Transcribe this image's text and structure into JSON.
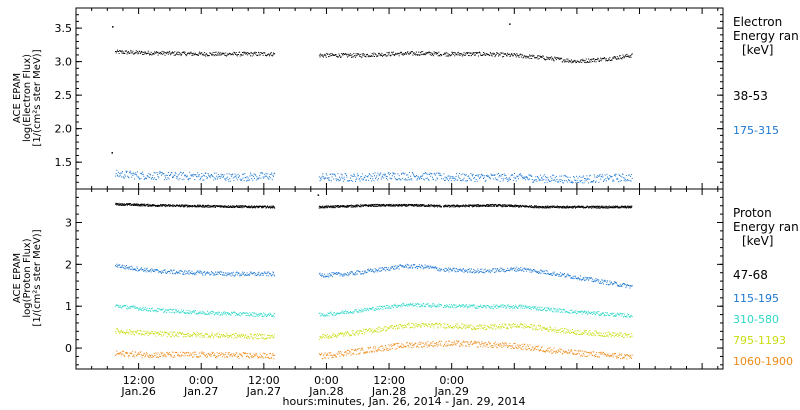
{
  "chart_data": [
    {
      "type": "scatter",
      "panel": "electron",
      "ylabel_lines": [
        "ACE EPAM",
        "log(Electron Flux)",
        "[1/(cm²s ster MeV)]"
      ],
      "ylim": [
        1.1,
        3.8
      ],
      "yticks": [
        1.5,
        2.0,
        2.5,
        3.0,
        3.5
      ],
      "ytick_labels": [
        "1.5",
        "2.0",
        "2.5",
        "3.0",
        "3.5"
      ],
      "legend_title": [
        "Electron",
        "Energy ran",
        "[keV]"
      ],
      "gaps_hours": [
        [
          38.0,
          46.5
        ],
        [
          70.0,
          70.3
        ]
      ],
      "series": [
        {
          "name": "38-53",
          "color": "#000000",
          "points": [
            [
              7.5,
              3.15
            ],
            [
              12.0,
              3.14
            ],
            [
              18.0,
              3.13
            ],
            [
              24.0,
              3.12
            ],
            [
              30.0,
              3.12
            ],
            [
              37.5,
              3.12
            ],
            [
              47.0,
              3.1
            ],
            [
              54.0,
              3.1
            ],
            [
              60.0,
              3.12
            ],
            [
              66.0,
              3.13
            ],
            [
              70.5,
              3.12
            ],
            [
              78.0,
              3.12
            ],
            [
              84.0,
              3.1
            ],
            [
              90.0,
              3.06
            ],
            [
              96.0,
              3.01
            ],
            [
              102.0,
              3.05
            ],
            [
              106.5,
              3.1
            ]
          ],
          "outliers": [
            [
              6.9,
              3.53
            ],
            [
              6.8,
              1.65
            ],
            [
              83.0,
              3.57
            ]
          ]
        },
        {
          "name": "175-315",
          "color": "#1e78d2",
          "points": [
            [
              7.5,
              1.33
            ],
            [
              12.0,
              1.31
            ],
            [
              18.0,
              1.3
            ],
            [
              24.0,
              1.3
            ],
            [
              30.0,
              1.28
            ],
            [
              37.5,
              1.3
            ],
            [
              47.0,
              1.28
            ],
            [
              54.0,
              1.28
            ],
            [
              60.0,
              1.3
            ],
            [
              66.0,
              1.3
            ],
            [
              70.5,
              1.28
            ],
            [
              78.0,
              1.28
            ],
            [
              84.0,
              1.28
            ],
            [
              90.0,
              1.26
            ],
            [
              96.0,
              1.25
            ],
            [
              102.0,
              1.27
            ],
            [
              106.5,
              1.28
            ]
          ]
        }
      ]
    },
    {
      "type": "scatter",
      "panel": "proton",
      "ylabel_lines": [
        "ACE EPAM",
        "log(Proton Flux)",
        "[1/(cm²s ster MeV)]"
      ],
      "ylim": [
        -0.5,
        3.8
      ],
      "yticks": [
        0,
        1,
        2,
        3
      ],
      "ytick_labels": [
        "0",
        "1",
        "2",
        "3"
      ],
      "xticks_hours": [
        12,
        24,
        36,
        48,
        60,
        72
      ],
      "xtick_labels": [
        [
          "12:00",
          "Jan.26"
        ],
        [
          "0:00",
          "Jan.27"
        ],
        [
          "12:00",
          "Jan.27"
        ],
        [
          "0:00",
          "Jan.28"
        ],
        [
          "12:00",
          "Jan.28"
        ],
        [
          "0:00",
          "Jan.29"
        ]
      ],
      "xlabel": "hours:minutes, Jan. 26, 2014 - Jan. 29, 2014",
      "xlim": [
        0,
        124
      ],
      "legend_title": [
        "Proton",
        "Energy ran",
        "[keV]"
      ],
      "gaps_hours": [
        [
          38.0,
          46.5
        ],
        [
          70.0,
          70.3
        ]
      ],
      "series": [
        {
          "name": "47-68",
          "color": "#000000",
          "points": [
            [
              7.5,
              3.45
            ],
            [
              15.0,
              3.42
            ],
            [
              25.0,
              3.4
            ],
            [
              37.5,
              3.38
            ],
            [
              47.0,
              3.38
            ],
            [
              57.0,
              3.42
            ],
            [
              66.0,
              3.42
            ],
            [
              70.5,
              3.4
            ],
            [
              80.0,
              3.42
            ],
            [
              90.0,
              3.38
            ],
            [
              100.0,
              3.38
            ],
            [
              106.5,
              3.38
            ]
          ],
          "outliers": [
            [
              46.3,
              3.67
            ]
          ]
        },
        {
          "name": "115-195",
          "color": "#1e78d2",
          "points": [
            [
              7.5,
              2.0
            ],
            [
              9.0,
              1.95
            ],
            [
              15.0,
              1.85
            ],
            [
              20.0,
              1.82
            ],
            [
              25.0,
              1.8
            ],
            [
              30.0,
              1.78
            ],
            [
              37.5,
              1.78
            ],
            [
              47.0,
              1.75
            ],
            [
              52.0,
              1.78
            ],
            [
              58.0,
              1.88
            ],
            [
              63.0,
              1.97
            ],
            [
              67.0,
              1.95
            ],
            [
              70.5,
              1.88
            ],
            [
              78.0,
              1.85
            ],
            [
              85.0,
              1.9
            ],
            [
              90.0,
              1.82
            ],
            [
              96.0,
              1.7
            ],
            [
              102.0,
              1.57
            ],
            [
              106.5,
              1.48
            ]
          ]
        },
        {
          "name": "310-580",
          "color": "#2ed8c8",
          "points": [
            [
              7.5,
              1.02
            ],
            [
              15.0,
              0.92
            ],
            [
              25.0,
              0.85
            ],
            [
              37.5,
              0.8
            ],
            [
              47.0,
              0.8
            ],
            [
              55.0,
              0.92
            ],
            [
              63.0,
              1.05
            ],
            [
              70.5,
              1.02
            ],
            [
              78.0,
              1.0
            ],
            [
              85.0,
              1.0
            ],
            [
              95.0,
              0.88
            ],
            [
              106.5,
              0.78
            ]
          ]
        },
        {
          "name": "795-1193",
          "color": "#c8dc10",
          "points": [
            [
              7.5,
              0.42
            ],
            [
              15.0,
              0.35
            ],
            [
              25.0,
              0.32
            ],
            [
              37.5,
              0.28
            ],
            [
              47.0,
              0.28
            ],
            [
              55.0,
              0.4
            ],
            [
              63.0,
              0.55
            ],
            [
              70.5,
              0.55
            ],
            [
              78.0,
              0.5
            ],
            [
              85.0,
              0.55
            ],
            [
              95.0,
              0.4
            ],
            [
              106.5,
              0.3
            ]
          ]
        },
        {
          "name": "1060-1900",
          "color": "#ee8a1a",
          "points": [
            [
              7.5,
              -0.12
            ],
            [
              15.0,
              -0.15
            ],
            [
              25.0,
              -0.15
            ],
            [
              37.5,
              -0.18
            ],
            [
              47.0,
              -0.18
            ],
            [
              55.0,
              -0.05
            ],
            [
              63.0,
              0.08
            ],
            [
              70.5,
              0.12
            ],
            [
              78.0,
              0.1
            ],
            [
              85.0,
              0.05
            ],
            [
              95.0,
              -0.1
            ],
            [
              106.5,
              -0.2
            ]
          ]
        }
      ]
    }
  ]
}
